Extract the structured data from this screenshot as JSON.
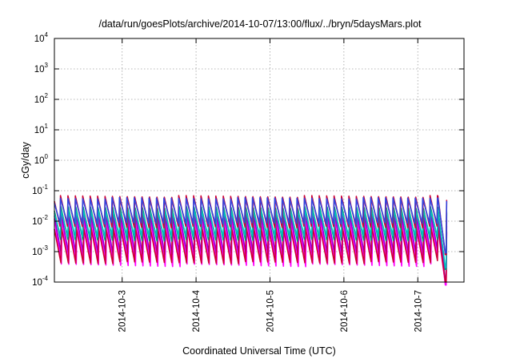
{
  "chart_data": {
    "type": "line",
    "title": "/data/run/goesPlots/archive/2014-10-07/13:00/flux/../bryn/5daysMars.plot",
    "xlabel": "Coordinated Universal Time (UTC)",
    "ylabel": "cGy/day",
    "yscale": "log",
    "ylim": [
      0.0001,
      10000
    ],
    "xlim": [
      "2014-10-02 02:00",
      "2014-10-07 15:00"
    ],
    "grid": true,
    "y_ticks": [
      {
        "base": "10",
        "exp": "-4"
      },
      {
        "base": "10",
        "exp": "-3"
      },
      {
        "base": "10",
        "exp": "-2"
      },
      {
        "base": "10",
        "exp": "-1"
      },
      {
        "base": "10",
        "exp": "0"
      },
      {
        "base": "10",
        "exp": "1"
      },
      {
        "base": "10",
        "exp": "2"
      },
      {
        "base": "10",
        "exp": "3"
      },
      {
        "base": "10",
        "exp": "4"
      }
    ],
    "x_ticks": [
      "2014-10-3",
      "2014-10-4",
      "2014-10-5",
      "2014-10-6",
      "2014-10-7"
    ],
    "oscillation": {
      "cycles_per_day": 10,
      "start_hours": 0,
      "end_hours": 127.5,
      "dip_start_hours": 124.5,
      "dip_end_hours": 127.3
    },
    "series": [
      {
        "color": "#ff00ff",
        "peak": 0.012,
        "trough": 0.00032,
        "dip_min": 8e-05
      },
      {
        "color": "#ff00ff",
        "peak": 0.006,
        "trough": 0.0005,
        "dip_min": 9e-05
      },
      {
        "color": "#9400d3",
        "peak": 0.018,
        "trough": 0.0008,
        "dip_min": 0.00012
      },
      {
        "color": "#cc0033",
        "peak": 0.007,
        "trough": 0.0004,
        "dip_min": 0.0001
      },
      {
        "color": "#009e73",
        "peak": 0.03,
        "trough": 0.0022,
        "dip_min": 0.00026
      },
      {
        "color": "#00c0c0",
        "peak": 0.025,
        "trough": 0.003,
        "dip_min": 0.0003
      },
      {
        "color": "#cc0033",
        "peak": 0.07,
        "trough": 0.006,
        "dip_min": 0.0008
      },
      {
        "color": "#3344dd",
        "peak": 0.06,
        "trough": 0.008,
        "dip_min": 0.0009
      }
    ]
  }
}
